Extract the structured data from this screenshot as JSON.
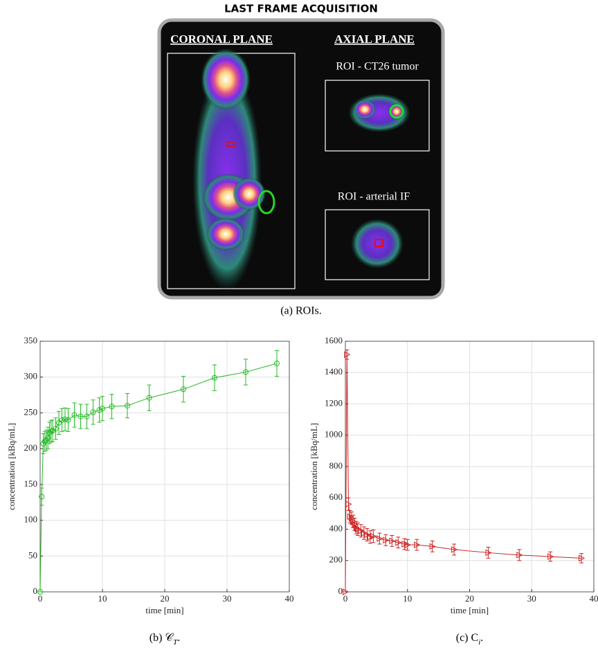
{
  "panel_a": {
    "title": "LAST FRAME ACQUISITION",
    "left_label": "CORONAL PLANE",
    "right_label": "AXIAL PLANE",
    "roi_labels": [
      "ROI - CT26 tumor",
      "ROI - arterial IF"
    ],
    "caption": "(a) ROIs."
  },
  "chart_data": [
    {
      "type": "line",
      "xlabel": "time [min]",
      "ylabel": "concentration [kBq/mL]",
      "caption": [
        "(b) 𝒞",
        "T",
        "."
      ],
      "x": [
        0,
        0.25,
        0.5,
        0.75,
        1,
        1.25,
        1.5,
        1.75,
        2,
        2.5,
        3,
        3.5,
        4,
        4.5,
        5.5,
        6.5,
        7.5,
        8.5,
        9.5,
        10,
        11.5,
        14,
        17.5,
        23,
        28,
        33,
        38
      ],
      "xlim": [
        0,
        40
      ],
      "xticks": [
        0,
        10,
        20,
        30,
        40
      ],
      "ylim": [
        0,
        350
      ],
      "yticks": [
        0,
        50,
        100,
        150,
        200,
        250,
        300,
        350
      ],
      "grid": true,
      "series": [
        {
          "color": "#22bb22",
          "marker": "circle",
          "values": [
            0,
            133,
            207,
            210,
            212,
            215,
            222,
            224,
            225,
            228,
            236,
            240,
            241,
            240,
            247,
            245,
            245,
            251,
            254,
            256,
            259,
            260,
            271,
            283,
            299,
            307,
            319
          ],
          "errors": [
            0,
            12,
            14,
            14,
            14,
            15,
            15,
            15,
            15,
            15,
            16,
            16,
            16,
            16,
            17,
            17,
            17,
            17,
            17,
            17,
            17,
            17,
            18,
            18,
            18,
            18,
            18
          ]
        }
      ]
    },
    {
      "type": "line",
      "xlabel": "time [min]",
      "ylabel": "concentration [kBq/mL]",
      "caption": [
        "(c) C",
        "i",
        "."
      ],
      "x": [
        0,
        0.25,
        0.5,
        0.75,
        1,
        1.25,
        1.5,
        1.75,
        2,
        2.5,
        3,
        3.5,
        4,
        4.5,
        5.5,
        6.5,
        7.5,
        8.5,
        9.5,
        10,
        11.5,
        14,
        17.5,
        23,
        28,
        33,
        38
      ],
      "xlim": [
        0,
        40
      ],
      "xticks": [
        0,
        10,
        20,
        30,
        40
      ],
      "ylim": [
        0,
        1600
      ],
      "yticks": [
        0,
        200,
        400,
        600,
        800,
        1000,
        1200,
        1400,
        1600
      ],
      "grid": true,
      "series": [
        {
          "color": "#cc2222",
          "marker": "triangle-right",
          "values": [
            0,
            1515,
            560,
            480,
            470,
            450,
            430,
            410,
            400,
            390,
            375,
            365,
            350,
            355,
            340,
            330,
            325,
            315,
            305,
            300,
            300,
            290,
            270,
            250,
            235,
            225,
            215
          ],
          "errors": [
            0,
            30,
            40,
            40,
            40,
            40,
            40,
            40,
            40,
            40,
            40,
            40,
            40,
            40,
            35,
            35,
            35,
            35,
            35,
            35,
            35,
            35,
            35,
            35,
            35,
            30,
            30
          ]
        }
      ]
    }
  ]
}
